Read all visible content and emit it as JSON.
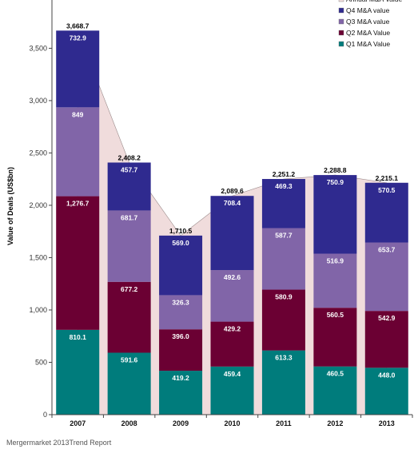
{
  "chart_data": {
    "type": "bar",
    "stacked": true,
    "categories": [
      "2007",
      "2008",
      "2009",
      "2010",
      "2011",
      "2012",
      "2013"
    ],
    "series": [
      {
        "name": "Q1 M&A Value",
        "color": "#007c7c",
        "values": [
          810.1,
          591.6,
          419.2,
          459.4,
          613.3,
          460.5,
          448.0
        ]
      },
      {
        "name": "Q2 M&A Value",
        "color": "#6b0033",
        "values": [
          1276.7,
          677.2,
          396.0,
          429.2,
          580.9,
          560.5,
          542.9
        ]
      },
      {
        "name": "Q3 M&A Value",
        "color": "#8165a8",
        "values": [
          849,
          681.7,
          326.3,
          492.6,
          587.7,
          516.9,
          653.7
        ]
      },
      {
        "name": "Q4 M&A Value",
        "color": "#2f2a8f",
        "values": [
          732.9,
          457.7,
          569.0,
          708.4,
          469.3,
          750.9,
          570.5
        ]
      }
    ],
    "segment_labels": [
      [
        "810.1",
        "591.6",
        "419.2",
        "459.4",
        "613.3",
        "460.5",
        "448.0"
      ],
      [
        "1,276.7",
        "677.2",
        "396.0",
        "429.2",
        "580.9",
        "560.5",
        "542.9"
      ],
      [
        "849",
        "681.7",
        "326.3",
        "492.6",
        "587.7",
        "516.9",
        "653.7"
      ],
      [
        "732.9",
        "457.7",
        "569.0",
        "708.4",
        "469.3",
        "750.9",
        "570.5"
      ]
    ],
    "annual": {
      "name": "Annual M&A Value",
      "color": "#f0dcdc",
      "values": [
        3668.7,
        2408.2,
        1710.5,
        2089.6,
        2251.2,
        2288.8,
        2215.1
      ],
      "labels": [
        "3,668.7",
        "2,408.2",
        "1,710.5",
        "2,089.6",
        "2,251.2",
        "2,288.8",
        "2,215.1"
      ]
    },
    "ylabel": "Value of Deals (US$bn)",
    "ylim": [
      0,
      3900
    ],
    "yticks": [
      0,
      500,
      1000,
      1500,
      2000,
      2500,
      3000,
      3500
    ],
    "ytick_labels": [
      "0",
      "500",
      "1,000",
      "1,500",
      "2,000",
      "2,500",
      "3,000",
      "3,500"
    ],
    "legend_order": [
      "Annual M&A Value",
      "Q4 M&A value",
      "Q3 M&A value",
      "Q2 M&A Value",
      "Q1 M&A Value"
    ],
    "legend_position": "top-right",
    "grid": false
  },
  "source": "Mergermarket 2013Trend Report"
}
